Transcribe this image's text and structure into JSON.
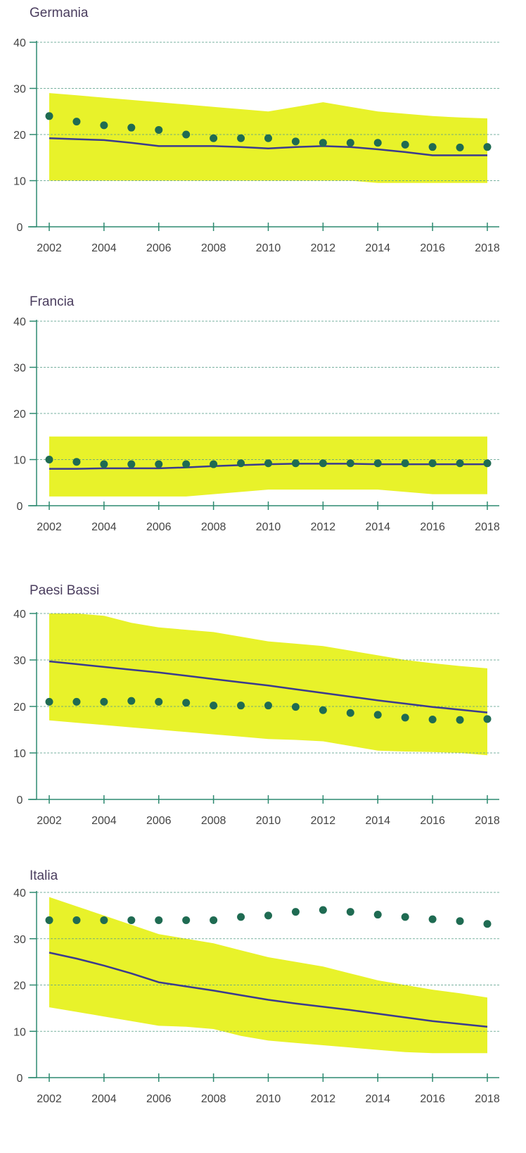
{
  "colors": {
    "band": "#e8f22a",
    "line": "#3b3b8e",
    "dots": "#1f6b52",
    "axis": "#2e8a70",
    "grid": "#5aa08a",
    "title": "#4a3d5e"
  },
  "chart_data": [
    {
      "type": "line",
      "title": "Germania",
      "x": [
        2002,
        2003,
        2004,
        2005,
        2006,
        2007,
        2008,
        2009,
        2010,
        2011,
        2012,
        2013,
        2014,
        2015,
        2016,
        2017,
        2018
      ],
      "xticks": [
        "2002",
        "2004",
        "2006",
        "2008",
        "2010",
        "2012",
        "2014",
        "2016",
        "2018"
      ],
      "yticks": [
        "0",
        "10",
        "20",
        "30",
        "40"
      ],
      "ylim": [
        0,
        40
      ],
      "band": {
        "upper": [
          29,
          28.5,
          28,
          27.5,
          27,
          26.5,
          26,
          25.5,
          25,
          26,
          27,
          26,
          25,
          24.5,
          24,
          23.7,
          23.5
        ],
        "lower": [
          10,
          10,
          10,
          10,
          10,
          10,
          10,
          10,
          10,
          10,
          10,
          10,
          9.5,
          9.5,
          9.5,
          9.5,
          9.5
        ]
      },
      "series": [
        {
          "values": [
            19.2,
            19,
            18.8,
            18.2,
            17.5,
            17.5,
            17.5,
            17.3,
            17,
            17.3,
            17.5,
            17.3,
            16.8,
            16.2,
            15.5,
            15.5,
            15.5
          ]
        },
        {
          "values": [
            24,
            22.8,
            22,
            21.5,
            21,
            20,
            19.2,
            19.2,
            19.2,
            18.5,
            18.2,
            18.2,
            18.2,
            17.8,
            17.3,
            17.2,
            17.3
          ]
        }
      ]
    },
    {
      "type": "line",
      "title": "Francia",
      "x": [
        2002,
        2003,
        2004,
        2005,
        2006,
        2007,
        2008,
        2009,
        2010,
        2011,
        2012,
        2013,
        2014,
        2015,
        2016,
        2017,
        2018
      ],
      "xticks": [
        "2002",
        "2004",
        "2006",
        "2008",
        "2010",
        "2012",
        "2014",
        "2016",
        "2018"
      ],
      "yticks": [
        "0",
        "10",
        "20",
        "30",
        "40"
      ],
      "ylim": [
        0,
        40
      ],
      "band": {
        "upper": [
          15,
          15,
          15,
          15,
          15,
          15,
          15,
          15,
          15,
          15,
          15,
          15,
          15,
          15,
          15,
          15,
          15
        ],
        "lower": [
          2,
          2,
          2,
          2,
          2,
          2,
          2.5,
          3,
          3.5,
          3.5,
          3.5,
          3.5,
          3.5,
          3,
          2.5,
          2.5,
          2.5
        ]
      },
      "series": [
        {
          "values": [
            8,
            8,
            8.1,
            8.1,
            8.1,
            8.3,
            8.6,
            8.8,
            9,
            9.1,
            9.1,
            9.1,
            9,
            9,
            9,
            9,
            9
          ]
        },
        {
          "values": [
            10,
            9.5,
            9,
            9,
            9,
            9,
            9,
            9.2,
            9.2,
            9.2,
            9.2,
            9.2,
            9.2,
            9.2,
            9.2,
            9.2,
            9.2
          ]
        }
      ]
    },
    {
      "type": "line",
      "title": "Paesi Bassi",
      "x": [
        2002,
        2003,
        2004,
        2005,
        2006,
        2007,
        2008,
        2009,
        2010,
        2011,
        2012,
        2013,
        2014,
        2015,
        2016,
        2017,
        2018
      ],
      "xticks": [
        "2002",
        "2004",
        "2006",
        "2008",
        "2010",
        "2012",
        "2014",
        "2016",
        "2018"
      ],
      "yticks": [
        "0",
        "10",
        "20",
        "30",
        "40"
      ],
      "ylim": [
        0,
        40
      ],
      "band": {
        "upper": [
          40,
          40,
          39.5,
          38,
          37,
          36.5,
          36,
          35,
          34,
          33.5,
          33,
          32,
          31,
          30,
          29.3,
          28.7,
          28.2
        ],
        "lower": [
          17,
          16.5,
          16,
          15.5,
          15,
          14.5,
          14,
          13.5,
          13,
          12.8,
          12.5,
          11.5,
          10.5,
          10.3,
          10.2,
          10,
          9.5
        ]
      },
      "series": [
        {
          "values": [
            29.7,
            29.1,
            28.5,
            27.9,
            27.3,
            26.6,
            25.9,
            25.2,
            24.5,
            23.7,
            22.9,
            22.1,
            21.3,
            20.6,
            19.9,
            19.3,
            18.7
          ]
        },
        {
          "values": [
            21,
            21,
            21,
            21.2,
            21,
            20.8,
            20.2,
            20.2,
            20.2,
            19.9,
            19.2,
            18.6,
            18.2,
            17.6,
            17.2,
            17.1,
            17.3
          ]
        }
      ]
    },
    {
      "type": "line",
      "title": "Italia",
      "x": [
        2002,
        2003,
        2004,
        2005,
        2006,
        2007,
        2008,
        2009,
        2010,
        2011,
        2012,
        2013,
        2014,
        2015,
        2016,
        2017,
        2018
      ],
      "xticks": [
        "2002",
        "2004",
        "2006",
        "2008",
        "2010",
        "2012",
        "2014",
        "2016",
        "2018"
      ],
      "yticks": [
        "0",
        "10",
        "20",
        "30",
        "40"
      ],
      "ylim": [
        0,
        40
      ],
      "band": {
        "upper": [
          39,
          37,
          35,
          33,
          31,
          30,
          29,
          27.5,
          26,
          25,
          24,
          22.5,
          21,
          20,
          19,
          18.2,
          17.3
        ],
        "lower": [
          15.2,
          14.2,
          13.2,
          12.2,
          11.2,
          11,
          10.5,
          9,
          8,
          7.5,
          7,
          6.5,
          6,
          5.5,
          5.3,
          5.3,
          5.3
        ]
      },
      "series": [
        {
          "values": [
            27,
            25.7,
            24.2,
            22.5,
            20.6,
            19.7,
            18.8,
            17.8,
            16.8,
            16,
            15.3,
            14.6,
            13.8,
            13,
            12.2,
            11.6,
            11
          ]
        },
        {
          "values": [
            34,
            34,
            34,
            34,
            34,
            34,
            34,
            34.7,
            35,
            35.8,
            36.2,
            35.8,
            35.2,
            34.7,
            34.2,
            33.8,
            33.2
          ]
        }
      ]
    }
  ]
}
